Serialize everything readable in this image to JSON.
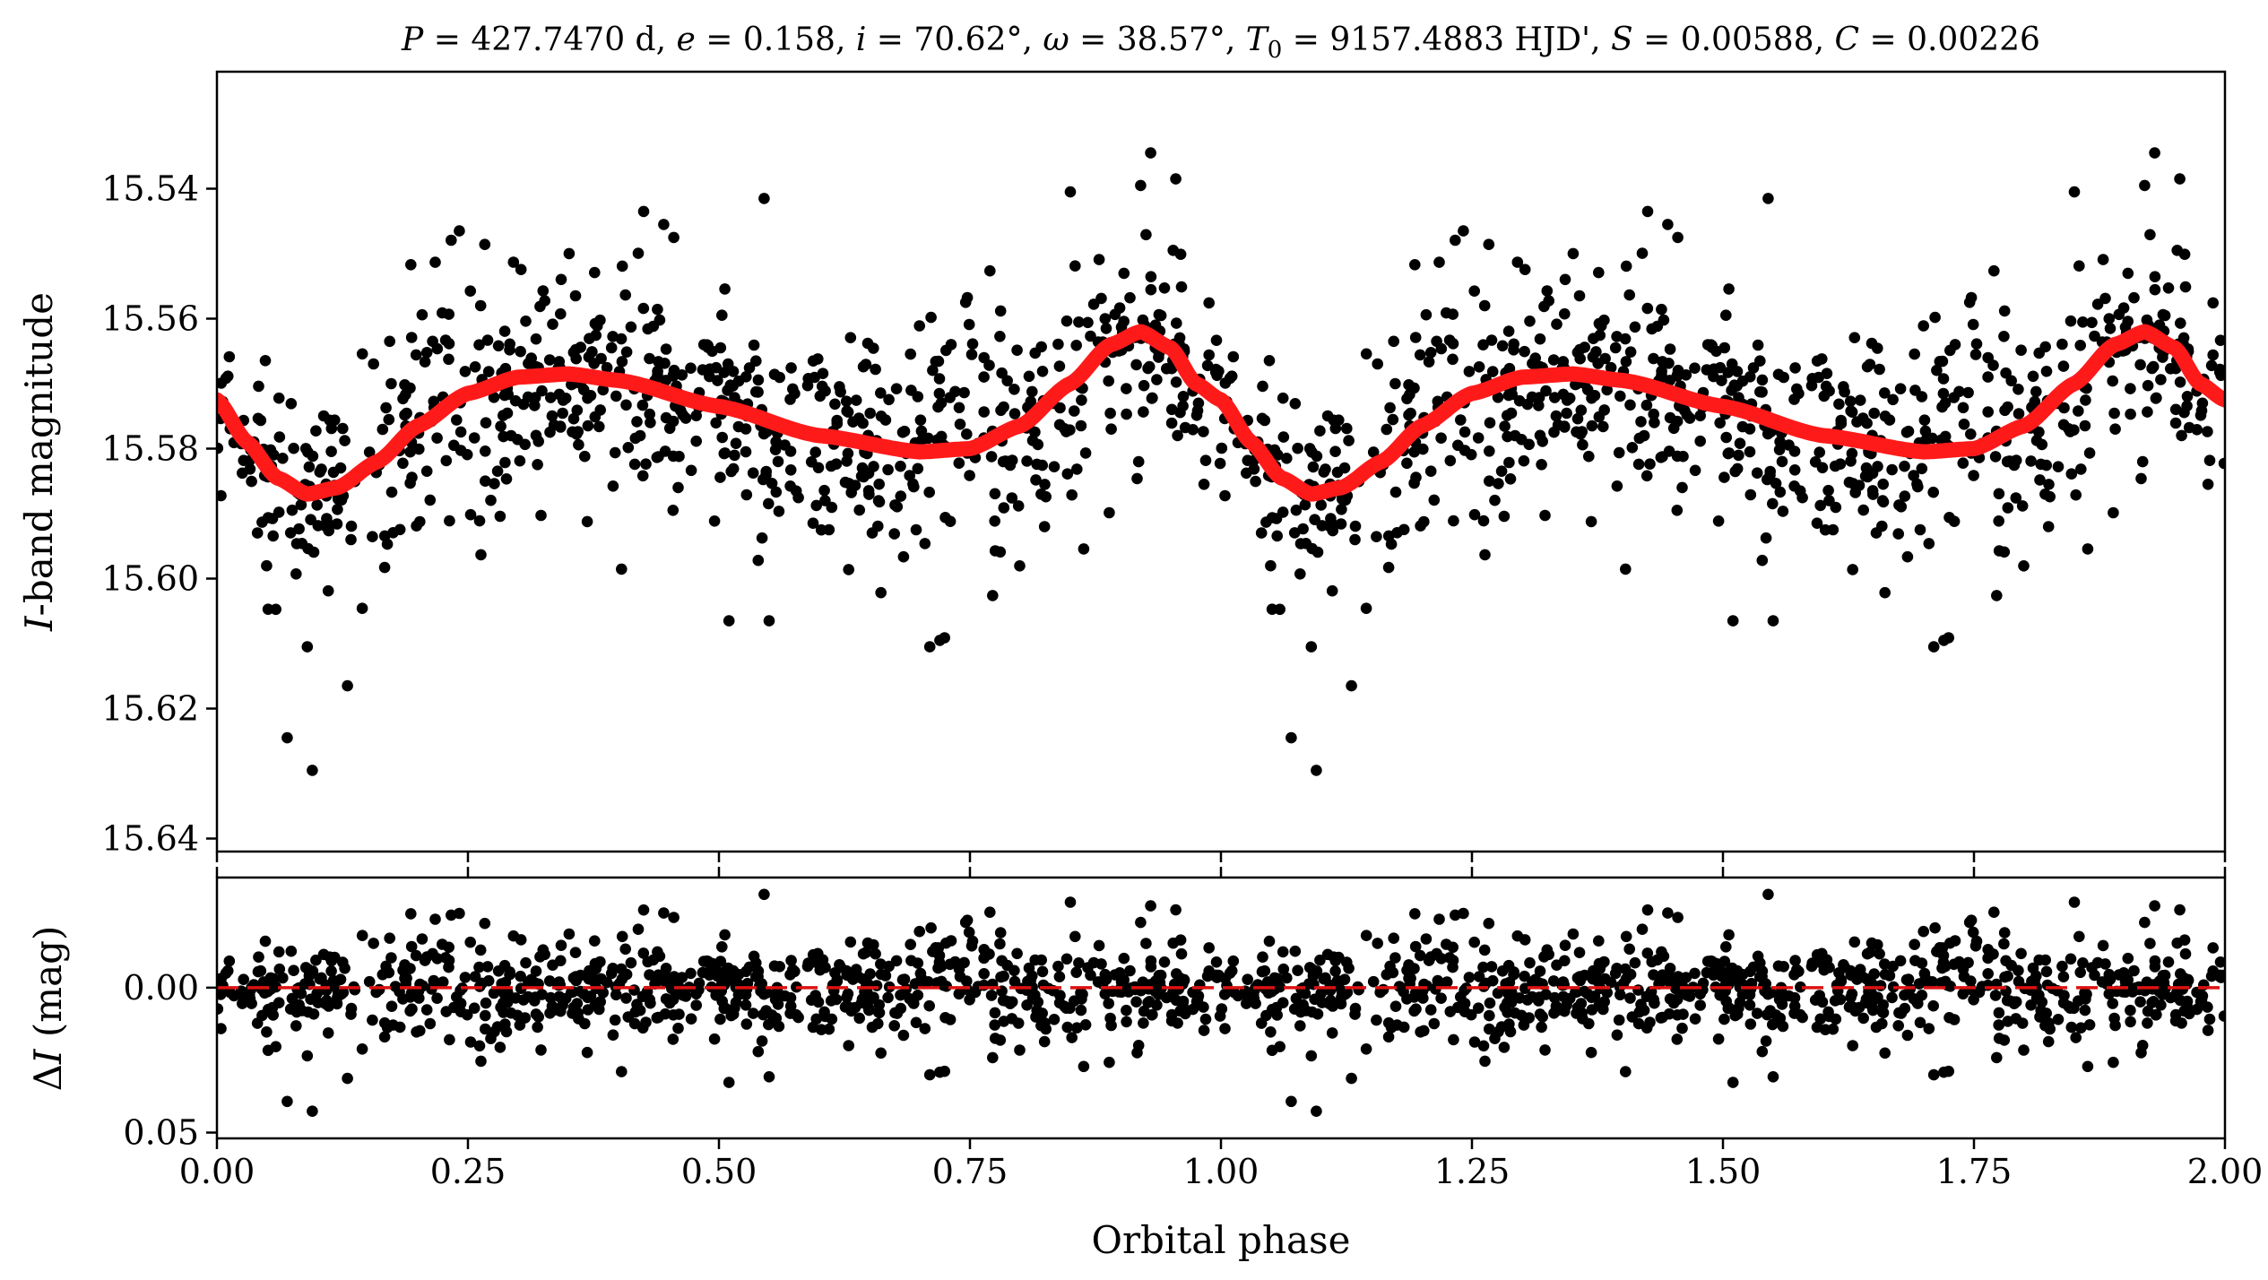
{
  "chart_data": [
    {
      "type": "scatter",
      "panel": "top",
      "title": "P = 427.7470 d, e = 0.158, i = 70.62°, ω = 38.57°, T0 = 9157.4883 HJD', S = 0.00588, C = 0.00226",
      "title_parts": {
        "P": "427.7470 d",
        "e": "0.158",
        "i": "70.62°",
        "omega": "38.57°",
        "T0": "9157.4883 HJD'",
        "S": "0.00588",
        "C": "0.00226"
      },
      "xlabel": "Orbital phase",
      "ylabel_italic": "I",
      "ylabel_rest": "-band magnitude",
      "xlim": [
        0.0,
        2.0
      ],
      "ylim": [
        15.642,
        15.522
      ],
      "y_inverted": true,
      "yticks": [
        15.54,
        15.56,
        15.58,
        15.6,
        15.62,
        15.64
      ],
      "ytick_labels": [
        "15.54",
        "15.56",
        "15.58",
        "15.60",
        "15.62",
        "15.64"
      ],
      "series": [
        {
          "name": "observations",
          "kind": "points",
          "color": "#000000",
          "n_per_cycle": 760,
          "scatter_sigma": 0.0085,
          "outliers_phase_mag": [
            [
              0.095,
              15.6295
            ],
            [
              0.07,
              15.6245
            ],
            [
              0.13,
              15.6165
            ],
            [
              0.09,
              15.6105
            ],
            [
              0.55,
              15.6065
            ],
            [
              0.51,
              15.6065
            ],
            [
              0.71,
              15.6105
            ],
            [
              0.72,
              15.6095
            ],
            [
              0.425,
              15.5435
            ],
            [
              0.445,
              15.5455
            ],
            [
              0.455,
              15.5475
            ],
            [
              0.545,
              15.5415
            ],
            [
              0.93,
              15.5345
            ],
            [
              0.955,
              15.5385
            ],
            [
              0.92,
              15.5395
            ],
            [
              0.85,
              15.5405
            ]
          ]
        },
        {
          "name": "model",
          "kind": "line",
          "color": "#ff1a1a",
          "model_phase_mag": [
            [
              0.0,
              15.5725
            ],
            [
              0.03,
              15.579
            ],
            [
              0.06,
              15.5845
            ],
            [
              0.09,
              15.587
            ],
            [
              0.12,
              15.586
            ],
            [
              0.16,
              15.582
            ],
            [
              0.2,
              15.5765
            ],
            [
              0.25,
              15.5715
            ],
            [
              0.3,
              15.569
            ],
            [
              0.35,
              15.5685
            ],
            [
              0.4,
              15.5695
            ],
            [
              0.5,
              15.5735
            ],
            [
              0.6,
              15.578
            ],
            [
              0.7,
              15.5805
            ],
            [
              0.75,
              15.58
            ],
            [
              0.8,
              15.5765
            ],
            [
              0.85,
              15.57
            ],
            [
              0.89,
              15.564
            ],
            [
              0.92,
              15.562
            ],
            [
              0.95,
              15.5645
            ],
            [
              0.975,
              15.57
            ],
            [
              1.0,
              15.5725
            ]
          ]
        }
      ]
    },
    {
      "type": "scatter",
      "panel": "bottom",
      "xlabel": "Orbital phase",
      "ylabel_delta": "Δ",
      "ylabel_italic": "I",
      "ylabel_rest": " (mag)",
      "xlim": [
        0.0,
        2.0
      ],
      "ylim": [
        0.052,
        -0.038
      ],
      "y_inverted": true,
      "xticks": [
        0.0,
        0.25,
        0.5,
        0.75,
        1.0,
        1.25,
        1.5,
        1.75,
        2.0
      ],
      "xtick_labels": [
        "0.00",
        "0.25",
        "0.50",
        "0.75",
        "1.00",
        "1.25",
        "1.50",
        "1.75",
        "2.00"
      ],
      "yticks": [
        0.0,
        0.05
      ],
      "ytick_labels": [
        "0.00",
        "0.05"
      ],
      "reference_line": {
        "y": 0.0,
        "style": "dashed",
        "color": "#dd1111"
      },
      "series": [
        {
          "name": "residuals",
          "kind": "points",
          "color": "#000000"
        }
      ]
    }
  ]
}
